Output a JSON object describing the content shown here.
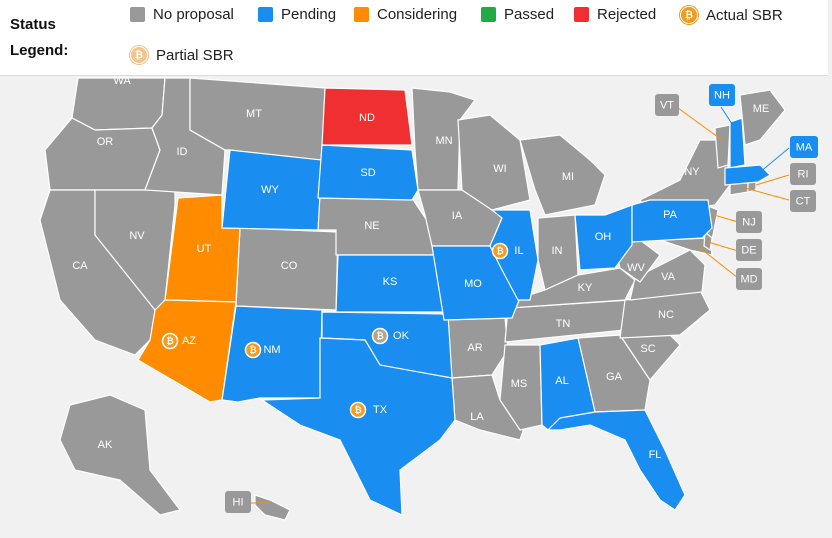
{
  "legend": {
    "title_line1": "Status",
    "title_line2": "Legend:",
    "items": [
      {
        "label": "No proposal",
        "color": "#999999"
      },
      {
        "label": "Pending",
        "color": "#1a8ef0"
      },
      {
        "label": "Considering",
        "color": "#ff8c00"
      },
      {
        "label": "Passed",
        "color": "#22aa44"
      },
      {
        "label": "Rejected",
        "color": "#f03030"
      },
      {
        "label": "Actual SBR",
        "icon": "bitcoin-icon"
      },
      {
        "label": "Partial SBR",
        "icon": "bitcoin-partial-icon"
      }
    ]
  },
  "btc_symbol": "₿",
  "colors": {
    "no_proposal": "#999999",
    "pending": "#1a8ef0",
    "considering": "#ff8c00",
    "passed": "#22aa44",
    "rejected": "#f03030",
    "callout_line_nh": "#1a8ef0",
    "callout_line_other": "#ff8c00"
  },
  "states": {
    "WA": "WA",
    "OR": "OR",
    "CA": "CA",
    "ID": "ID",
    "NV": "NV",
    "MT": "MT",
    "WY": "WY",
    "UT": "UT",
    "AZ": "AZ",
    "CO": "CO",
    "NM": "NM",
    "ND": "ND",
    "SD": "SD",
    "NE": "NE",
    "KS": "KS",
    "OK": "OK",
    "TX": "TX",
    "MN": "MN",
    "IA": "IA",
    "MO": "MO",
    "AR": "AR",
    "LA": "LA",
    "WI": "WI",
    "IL": "IL",
    "MI": "MI",
    "IN": "IN",
    "OH": "OH",
    "KY": "KY",
    "TN": "TN",
    "MS": "MS",
    "AL": "AL",
    "GA": "GA",
    "FL": "FL",
    "SC": "SC",
    "NC": "NC",
    "VA": "VA",
    "WV": "WV",
    "PA": "PA",
    "NY": "NY",
    "ME": "ME",
    "AK": "AK",
    "HI": "HI",
    "VT": "VT",
    "NH": "NH",
    "MA": "MA",
    "RI": "RI",
    "CT": "CT",
    "NJ": "NJ",
    "DE": "DE",
    "MD": "MD"
  }
}
